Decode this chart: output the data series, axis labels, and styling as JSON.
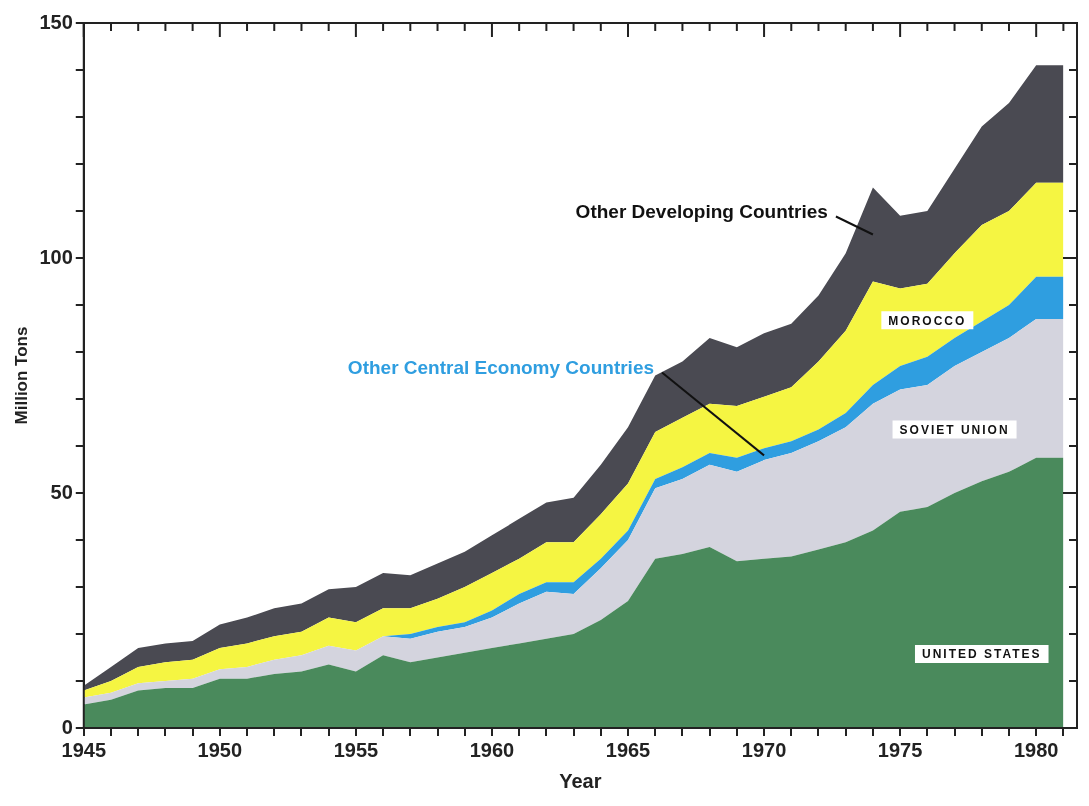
{
  "chart_data": {
    "type": "area",
    "stacked": true,
    "xlabel": "Year",
    "ylabel": "Million Tons",
    "x": [
      1945,
      1946,
      1947,
      1948,
      1949,
      1950,
      1951,
      1952,
      1953,
      1954,
      1955,
      1956,
      1957,
      1958,
      1959,
      1960,
      1961,
      1962,
      1963,
      1964,
      1965,
      1966,
      1967,
      1968,
      1969,
      1970,
      1971,
      1972,
      1973,
      1974,
      1975,
      1976,
      1977,
      1978,
      1979,
      1980,
      1981
    ],
    "series": [
      {
        "name": "UNITED STATES",
        "color": "#4a8a5c",
        "values": [
          5,
          6,
          8,
          8.5,
          8.5,
          10.5,
          10.5,
          11.5,
          12,
          13.5,
          12,
          15.5,
          14,
          15,
          16,
          17,
          18,
          19,
          20,
          23,
          27,
          36,
          37,
          38.5,
          35.5,
          36,
          36.5,
          38,
          39.5,
          42,
          46,
          47,
          50,
          52.5,
          54.5,
          57.5,
          57.5
        ]
      },
      {
        "name": "SOVIET UNION",
        "color": "#d4d4de",
        "values": [
          1.5,
          1.5,
          1.5,
          1.5,
          2,
          2,
          2.5,
          3,
          3.5,
          4,
          4.5,
          4,
          5,
          5.5,
          5.5,
          6.5,
          8.5,
          10,
          8.5,
          11,
          13,
          15,
          16,
          17.5,
          19,
          21,
          22,
          23,
          24.5,
          27,
          26,
          26,
          27,
          27.5,
          28.5,
          29.5,
          29.5
        ]
      },
      {
        "name": "Other Central Economy Countries",
        "color": "#2f9ee0",
        "values": [
          0,
          0,
          0,
          0,
          0,
          0,
          0,
          0,
          0,
          0,
          0,
          0,
          1,
          1,
          1,
          1.5,
          2,
          2,
          2.5,
          2,
          2,
          2,
          2.5,
          2.5,
          3,
          2.5,
          2.5,
          2.5,
          3,
          4,
          5,
          6,
          6,
          6.5,
          7,
          9,
          9
        ]
      },
      {
        "name": "MOROCCO",
        "color": "#f5f542",
        "values": [
          1.5,
          2.5,
          3.5,
          4,
          4,
          4.5,
          5,
          5,
          5,
          6,
          6,
          6,
          5.5,
          6,
          7.5,
          8,
          7.5,
          8.5,
          8.5,
          9.5,
          10,
          10,
          10.5,
          10.5,
          11,
          11,
          11.5,
          14.5,
          17.5,
          22,
          16.5,
          15.5,
          18,
          20.5,
          20,
          20,
          20
        ]
      },
      {
        "name": "Other Developing Countries",
        "color": "#4a4a52",
        "values": [
          1,
          3,
          4,
          4,
          4,
          5,
          5.5,
          6,
          6,
          6,
          7.5,
          7.5,
          7,
          7.5,
          7.5,
          8,
          8.5,
          8.5,
          9.5,
          10.5,
          12,
          12,
          12,
          14,
          12.5,
          13.5,
          13.5,
          14,
          16.5,
          20,
          15.5,
          15.5,
          18,
          21,
          23,
          25,
          25
        ]
      }
    ],
    "xlim": [
      1945,
      1981.5
    ],
    "xticks": [
      1945,
      {
        "value": 1946,
        "label": null
      },
      {
        "value": 1947,
        "label": null
      },
      {
        "value": 1948,
        "label": null
      },
      {
        "value": 1949,
        "label": null
      },
      1950,
      {
        "value": 1951,
        "label": null
      },
      {
        "value": 1952,
        "label": null
      },
      {
        "value": 1953,
        "label": null
      },
      {
        "value": 1954,
        "label": null
      },
      1955,
      {
        "value": 1956,
        "label": null
      },
      {
        "value": 1957,
        "label": null
      },
      {
        "value": 1958,
        "label": null
      },
      {
        "value": 1959,
        "label": null
      },
      1960,
      {
        "value": 1961,
        "label": null
      },
      {
        "value": 1962,
        "label": null
      },
      {
        "value": 1963,
        "label": null
      },
      {
        "value": 1964,
        "label": null
      },
      1965,
      {
        "value": 1966,
        "label": null
      },
      {
        "value": 1967,
        "label": null
      },
      {
        "value": 1968,
        "label": null
      },
      {
        "value": 1969,
        "label": null
      },
      1970,
      {
        "value": 1971,
        "label": null
      },
      {
        "value": 1972,
        "label": null
      },
      {
        "value": 1973,
        "label": null
      },
      {
        "value": 1974,
        "label": null
      },
      1975,
      {
        "value": 1976,
        "label": null
      },
      {
        "value": 1977,
        "label": null
      },
      {
        "value": 1978,
        "label": null
      },
      {
        "value": 1979,
        "label": null
      },
      1980,
      {
        "value": 1981,
        "label": null
      }
    ],
    "ylim": [
      0,
      150
    ],
    "yticks": [
      0,
      {
        "value": 10,
        "label": null
      },
      {
        "value": 20,
        "label": null
      },
      {
        "value": 30,
        "label": null
      },
      {
        "value": 40,
        "label": null
      },
      50,
      {
        "value": 60,
        "label": null
      },
      {
        "value": 70,
        "label": null
      },
      {
        "value": 80,
        "label": null
      },
      {
        "value": 90,
        "label": null
      },
      100,
      {
        "value": 110,
        "label": null
      },
      {
        "value": 120,
        "label": null
      },
      {
        "value": 130,
        "label": null
      },
      {
        "value": 140,
        "label": null
      },
      150
    ],
    "grid": false,
    "legend": false
  }
}
